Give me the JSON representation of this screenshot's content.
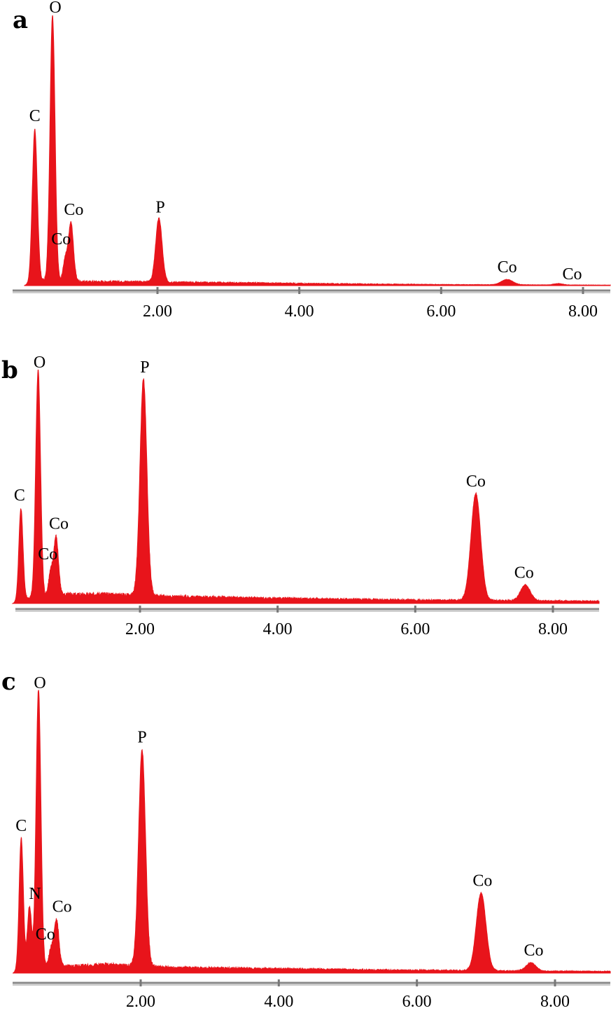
{
  "chart_data": [
    {
      "type": "area",
      "panel": "a",
      "x_ticks": [
        "2.00",
        "4.00",
        "6.00",
        "8.00"
      ],
      "xlim": [
        0.0,
        8.4
      ],
      "ylim": [
        0,
        100
      ],
      "grid": false,
      "peaks": [
        {
          "label": "C",
          "x": 0.27,
          "y": 57,
          "w": 0.035
        },
        {
          "label": "O",
          "x": 0.52,
          "y": 100,
          "w": 0.035
        },
        {
          "label": "Co",
          "x": 0.78,
          "y": 22,
          "w": 0.035
        },
        {
          "label": "Co",
          "x": 0.7,
          "y": 8,
          "w": 0.03
        },
        {
          "label": "P",
          "x": 2.02,
          "y": 24,
          "w": 0.045
        },
        {
          "label": "Co",
          "x": 6.93,
          "y": 2,
          "w": 0.08
        },
        {
          "label": "Co",
          "x": 7.65,
          "y": 0.5,
          "w": 0.06
        }
      ],
      "background": [
        {
          "x": 0.12,
          "y": 0
        },
        {
          "x": 0.3,
          "y": 2
        },
        {
          "x": 1.0,
          "y": 1.5
        },
        {
          "x": 1.5,
          "y": 1.5
        },
        {
          "x": 2.5,
          "y": 1.2
        },
        {
          "x": 4.0,
          "y": 0.8
        },
        {
          "x": 6.0,
          "y": 0.4
        },
        {
          "x": 8.4,
          "y": 0.2
        }
      ]
    },
    {
      "type": "area",
      "panel": "b",
      "x_ticks": [
        "2.00",
        "4.00",
        "6.00",
        "8.00"
      ],
      "xlim": [
        0.0,
        8.6
      ],
      "ylim": [
        0,
        100
      ],
      "grid": false,
      "peaks": [
        {
          "label": "C",
          "x": 0.27,
          "y": 40,
          "w": 0.03
        },
        {
          "label": "O",
          "x": 0.52,
          "y": 100,
          "w": 0.035
        },
        {
          "label": "Co",
          "x": 0.78,
          "y": 26,
          "w": 0.035
        },
        {
          "label": "Co",
          "x": 0.7,
          "y": 10,
          "w": 0.03
        },
        {
          "label": "P",
          "x": 2.05,
          "y": 95,
          "w": 0.05
        },
        {
          "label": "Co",
          "x": 6.88,
          "y": 47,
          "w": 0.07
        },
        {
          "label": "Co",
          "x": 7.6,
          "y": 7,
          "w": 0.07
        }
      ],
      "background": [
        {
          "x": 0.15,
          "y": 0
        },
        {
          "x": 0.3,
          "y": 2
        },
        {
          "x": 1.0,
          "y": 4
        },
        {
          "x": 1.5,
          "y": 4
        },
        {
          "x": 2.5,
          "y": 3
        },
        {
          "x": 4.0,
          "y": 2.2
        },
        {
          "x": 6.0,
          "y": 1.5
        },
        {
          "x": 8.6,
          "y": 1.0
        }
      ]
    },
    {
      "type": "area",
      "panel": "c",
      "x_ticks": [
        "2.00",
        "4.00",
        "6.00",
        "8.00"
      ],
      "xlim": [
        0.0,
        8.6
      ],
      "ylim": [
        0,
        100
      ],
      "grid": false,
      "peaks": [
        {
          "label": "C",
          "x": 0.27,
          "y": 47,
          "w": 0.03
        },
        {
          "label": "N",
          "x": 0.39,
          "y": 22,
          "w": 0.03
        },
        {
          "label": "O",
          "x": 0.52,
          "y": 100,
          "w": 0.035
        },
        {
          "label": "Co",
          "x": 0.78,
          "y": 17,
          "w": 0.035
        },
        {
          "label": "Co",
          "x": 0.7,
          "y": 6,
          "w": 0.03
        },
        {
          "label": "P",
          "x": 2.02,
          "y": 78,
          "w": 0.05
        },
        {
          "label": "Co",
          "x": 6.93,
          "y": 28,
          "w": 0.07
        },
        {
          "label": "Co",
          "x": 7.65,
          "y": 3,
          "w": 0.07
        }
      ],
      "background": [
        {
          "x": 0.15,
          "y": 0
        },
        {
          "x": 0.3,
          "y": 2
        },
        {
          "x": 1.0,
          "y": 2.5
        },
        {
          "x": 1.5,
          "y": 3
        },
        {
          "x": 2.5,
          "y": 2
        },
        {
          "x": 4.0,
          "y": 1.5
        },
        {
          "x": 6.0,
          "y": 1.0
        },
        {
          "x": 8.6,
          "y": 0.6
        }
      ]
    }
  ]
}
